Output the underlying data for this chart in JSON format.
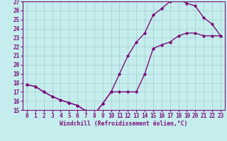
{
  "title": "",
  "xlabel": "Windchill (Refroidissement éolien,°C)",
  "ylabel": "",
  "xlim": [
    -0.5,
    23.5
  ],
  "ylim": [
    15,
    27
  ],
  "xticks": [
    0,
    1,
    2,
    3,
    4,
    5,
    6,
    7,
    8,
    9,
    10,
    11,
    12,
    13,
    14,
    15,
    16,
    17,
    18,
    19,
    20,
    21,
    22,
    23
  ],
  "yticks": [
    15,
    16,
    17,
    18,
    19,
    20,
    21,
    22,
    23,
    24,
    25,
    26,
    27
  ],
  "bg_color": "#c6eded",
  "line_color": "#7b0f7b",
  "line1_x": [
    0,
    1,
    2,
    3,
    4,
    5,
    6,
    7,
    8,
    9,
    10,
    11,
    12,
    13,
    14,
    15,
    16,
    17,
    18,
    19,
    20,
    21,
    22,
    23
  ],
  "line1_y": [
    17.8,
    17.6,
    17.0,
    16.5,
    16.1,
    15.8,
    15.5,
    14.9,
    14.5,
    15.7,
    17.0,
    17.0,
    17.0,
    17.0,
    19.0,
    21.8,
    22.2,
    22.5,
    23.2,
    23.5,
    23.5,
    23.2,
    23.2,
    23.2
  ],
  "line2_x": [
    0,
    1,
    2,
    3,
    4,
    5,
    6,
    7,
    8,
    9,
    10,
    11,
    12,
    13,
    14,
    15,
    16,
    17,
    18,
    19,
    20,
    21,
    22,
    23
  ],
  "line2_y": [
    17.8,
    17.6,
    17.0,
    16.5,
    16.1,
    15.8,
    15.5,
    14.9,
    14.5,
    15.7,
    17.0,
    19.0,
    21.0,
    22.5,
    23.5,
    25.5,
    26.2,
    27.0,
    27.2,
    26.8,
    26.5,
    25.2,
    24.5,
    23.2
  ],
  "marker": "D",
  "marker_size": 2.2,
  "line_width": 1.0,
  "tick_fontsize": 5.5,
  "xlabel_fontsize": 5.8,
  "grid_color": "#a0cdcd"
}
